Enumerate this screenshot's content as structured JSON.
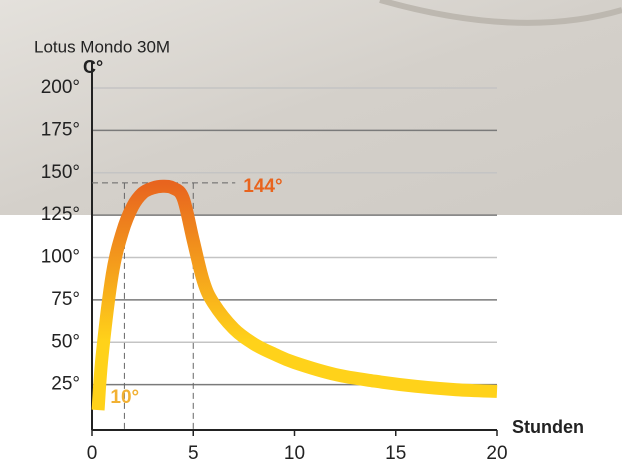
{
  "chart_data": {
    "type": "line",
    "title": "Lotus Mondo 30M",
    "y_label": "C°",
    "x_label": "Stunden",
    "x": [
      0.3,
      0.5,
      1,
      1.5,
      2,
      2.5,
      3,
      3.5,
      4,
      4.5,
      5,
      5.5,
      6,
      7,
      8,
      9,
      10,
      12,
      14,
      16,
      18,
      20
    ],
    "values": [
      10,
      42,
      90,
      115,
      130,
      138,
      141,
      142,
      141,
      135,
      110,
      86,
      73,
      58,
      49,
      43,
      38,
      31,
      27,
      24,
      22,
      21
    ],
    "color_low": "#ffd21a",
    "color_high": "#e8641e",
    "xlim": [
      0,
      20
    ],
    "xticks": [
      0,
      5,
      10,
      15,
      20
    ],
    "ylim": [
      0,
      200
    ],
    "yticks": [
      {
        "value": 25,
        "label": "25°"
      },
      {
        "value": 50,
        "label": "50°"
      },
      {
        "value": 75,
        "label": "75°"
      },
      {
        "value": 100,
        "label": "100°"
      },
      {
        "value": 125,
        "label": "125°"
      },
      {
        "value": 150,
        "label": "150°"
      },
      {
        "value": 175,
        "label": "175°"
      },
      {
        "value": 200,
        "label": "200°"
      }
    ],
    "grid": true,
    "peak": {
      "value": 144,
      "label": "144°",
      "x_start": 1.6,
      "x_end": 5
    },
    "low": {
      "value": 10,
      "label": "10°"
    }
  }
}
